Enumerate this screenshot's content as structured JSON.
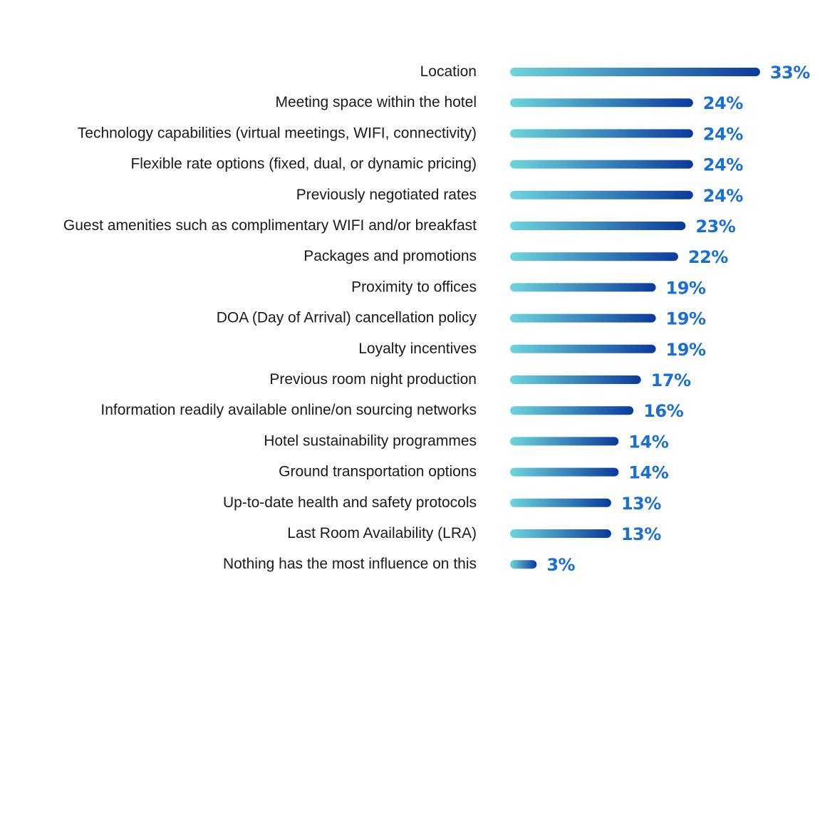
{
  "chart_data": {
    "type": "bar",
    "orientation": "horizontal",
    "categories": [
      "Location",
      "Meeting space within the hotel",
      "Technology capabilities (virtual meetings, WIFI, connectivity)",
      "Flexible rate options (fixed, dual, or dynamic pricing)",
      "Previously negotiated rates",
      "Guest amenities such as complimentary WIFI and/or breakfast",
      "Packages and promotions",
      "Proximity to offices",
      "DOA (Day of Arrival) cancellation policy",
      "Loyalty incentives",
      "Previous room night production",
      "Information readily available online/on sourcing networks",
      "Hotel sustainability programmes",
      "Ground transportation options",
      "Up-to-date health and safety protocols",
      "Last Room Availability (LRA)",
      "Nothing has the most influence on this"
    ],
    "values": [
      33,
      24,
      24,
      24,
      24,
      23,
      22,
      19,
      19,
      19,
      17,
      16,
      14,
      14,
      13,
      13,
      3
    ],
    "value_labels": [
      "33%",
      "24%",
      "24%",
      "24%",
      "24%",
      "23%",
      "22%",
      "19%",
      "19%",
      "19%",
      "17%",
      "16%",
      "14%",
      "14%",
      "13%",
      "13%",
      "3%"
    ],
    "unit": "%",
    "grid": false,
    "legend": "none",
    "colors": {
      "bar_gradient_start": "#6dd5dc",
      "bar_gradient_end": "#0a3a9c",
      "value_label": "#1a6fd4",
      "category_label": "#1a1a1a"
    }
  }
}
